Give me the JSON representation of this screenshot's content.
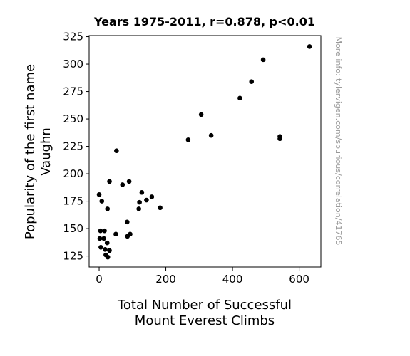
{
  "chart_data": {
    "type": "scatter",
    "title": "Years 1975-2011, r=0.878, p<0.01",
    "xlabel": [
      "Total Number of Successful",
      "Mount Everest Climbs"
    ],
    "ylabel": [
      "Popularity of the first name",
      "Vaughn"
    ],
    "watermark": "More info: tylervigen.com/spurious/correlation/41765",
    "xlim": [
      -30,
      665
    ],
    "ylim": [
      115,
      326
    ],
    "xticks": [
      0,
      200,
      400,
      600
    ],
    "yticks": [
      125,
      150,
      175,
      200,
      225,
      250,
      275,
      300,
      325
    ],
    "grid": false,
    "point_color": "#000000",
    "points": [
      {
        "x": 0,
        "y": 181
      },
      {
        "x": 2,
        "y": 141
      },
      {
        "x": 4,
        "y": 148
      },
      {
        "x": 5,
        "y": 133
      },
      {
        "x": 8,
        "y": 175
      },
      {
        "x": 14,
        "y": 141
      },
      {
        "x": 16,
        "y": 148
      },
      {
        "x": 18,
        "y": 131
      },
      {
        "x": 20,
        "y": 126
      },
      {
        "x": 24,
        "y": 137
      },
      {
        "x": 25,
        "y": 168
      },
      {
        "x": 26,
        "y": 124
      },
      {
        "x": 31,
        "y": 130
      },
      {
        "x": 31,
        "y": 193
      },
      {
        "x": 50,
        "y": 145
      },
      {
        "x": 52,
        "y": 221
      },
      {
        "x": 70,
        "y": 190
      },
      {
        "x": 84,
        "y": 156
      },
      {
        "x": 85,
        "y": 143
      },
      {
        "x": 90,
        "y": 193
      },
      {
        "x": 93,
        "y": 145
      },
      {
        "x": 119,
        "y": 168
      },
      {
        "x": 121,
        "y": 174
      },
      {
        "x": 128,
        "y": 183
      },
      {
        "x": 142,
        "y": 176
      },
      {
        "x": 158,
        "y": 179
      },
      {
        "x": 183,
        "y": 169
      },
      {
        "x": 267,
        "y": 231
      },
      {
        "x": 306,
        "y": 254
      },
      {
        "x": 336,
        "y": 235
      },
      {
        "x": 422,
        "y": 269
      },
      {
        "x": 457,
        "y": 284
      },
      {
        "x": 492,
        "y": 304
      },
      {
        "x": 542,
        "y": 232
      },
      {
        "x": 542,
        "y": 234
      },
      {
        "x": 631,
        "y": 316
      }
    ]
  }
}
